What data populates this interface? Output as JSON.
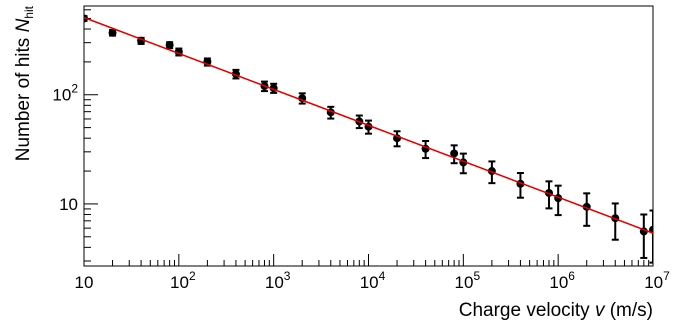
{
  "chart_data": {
    "type": "scatter",
    "title": "",
    "xlabel": {
      "text": "Charge velocity ",
      "var": "v",
      "unit": " (m/s)"
    },
    "ylabel": {
      "text": "Number of hits ",
      "var": "N",
      "sub": "hit"
    },
    "x_scale": "log",
    "y_scale": "log",
    "xlim": [
      10,
      10000000
    ],
    "ylim": [
      2.7,
      650
    ],
    "grid": false,
    "x_ticks": [
      {
        "value": 10,
        "base": "10",
        "exp": ""
      },
      {
        "value": 100,
        "base": "10",
        "exp": "2"
      },
      {
        "value": 1000,
        "base": "10",
        "exp": "3"
      },
      {
        "value": 10000,
        "base": "10",
        "exp": "4"
      },
      {
        "value": 100000,
        "base": "10",
        "exp": "5"
      },
      {
        "value": 1000000,
        "base": "10",
        "exp": "6"
      },
      {
        "value": 10000000,
        "base": "10",
        "exp": "7"
      }
    ],
    "y_ticks": [
      {
        "value": 10,
        "base": "10",
        "exp": ""
      },
      {
        "value": 100,
        "base": "10",
        "exp": "2"
      }
    ],
    "series": [
      {
        "marker_color": "#000000",
        "points": [
          {
            "x": 10,
            "y": 500,
            "err": 25
          },
          {
            "x": 20,
            "y": 370,
            "err": 22
          },
          {
            "x": 40,
            "y": 312,
            "err": 20
          },
          {
            "x": 80,
            "y": 285,
            "err": 18
          },
          {
            "x": 100,
            "y": 247,
            "err": 18
          },
          {
            "x": 200,
            "y": 200,
            "err": 15
          },
          {
            "x": 400,
            "y": 155,
            "err": 14
          },
          {
            "x": 800,
            "y": 120,
            "err": 12
          },
          {
            "x": 1000,
            "y": 115,
            "err": 11
          },
          {
            "x": 2000,
            "y": 93,
            "err": 10
          },
          {
            "x": 4000,
            "y": 69,
            "err": 8.5
          },
          {
            "x": 8000,
            "y": 57,
            "err": 7.5
          },
          {
            "x": 10000,
            "y": 51,
            "err": 7
          },
          {
            "x": 20000,
            "y": 40,
            "err": 6.3
          },
          {
            "x": 40000,
            "y": 32,
            "err": 5.7
          },
          {
            "x": 80000,
            "y": 29,
            "err": 5.4
          },
          {
            "x": 100000,
            "y": 24,
            "err": 4.9
          },
          {
            "x": 200000,
            "y": 20,
            "err": 4.5
          },
          {
            "x": 400000,
            "y": 15.3,
            "err": 3.9
          },
          {
            "x": 800000,
            "y": 12.6,
            "err": 3.5
          },
          {
            "x": 1000000,
            "y": 11.3,
            "err": 3.4
          },
          {
            "x": 2000000,
            "y": 9.4,
            "err": 3.1
          },
          {
            "x": 4000000,
            "y": 7.4,
            "err": 2.7
          },
          {
            "x": 8000000,
            "y": 5.6,
            "err": 2.4
          },
          {
            "x": 10000000,
            "y": 5.8,
            "err": 2.9
          }
        ]
      }
    ],
    "fit": {
      "color": "#dd0000",
      "x": [
        10,
        10000000
      ],
      "y": [
        510,
        5.4
      ]
    }
  }
}
